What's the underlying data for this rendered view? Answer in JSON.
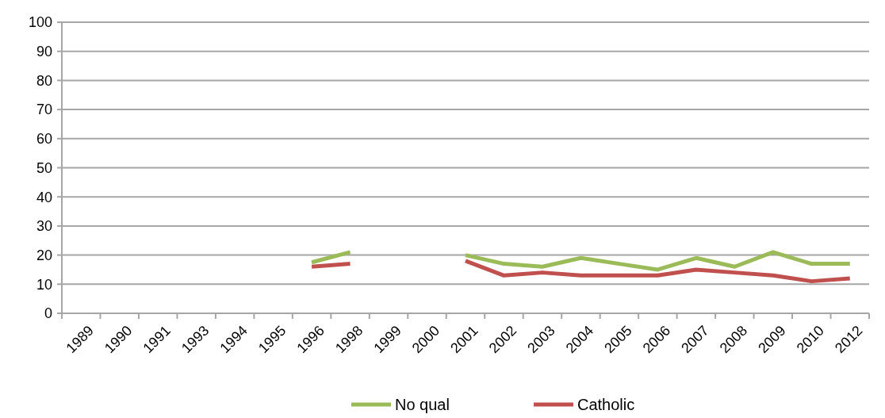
{
  "chart_data": {
    "type": "line",
    "categories": [
      "1989",
      "1990",
      "1991",
      "1993",
      "1994",
      "1995",
      "1996",
      "1998",
      "1999",
      "2000",
      "2001",
      "2002",
      "2003",
      "2004",
      "2005",
      "2006",
      "2007",
      "2008",
      "2009",
      "2010",
      "2012"
    ],
    "series": [
      {
        "name": "No qual",
        "color": "#9bbb59",
        "values": [
          null,
          null,
          null,
          null,
          null,
          null,
          17.5,
          21,
          null,
          null,
          20,
          17,
          16,
          19,
          17,
          15,
          19,
          16,
          21,
          17,
          17
        ]
      },
      {
        "name": "Catholic",
        "color": "#c0504d",
        "values": [
          null,
          null,
          null,
          null,
          null,
          null,
          16,
          17,
          null,
          null,
          18,
          13,
          14,
          13,
          13,
          13,
          15,
          14,
          13,
          11,
          12
        ]
      }
    ],
    "ylim": [
      0,
      100
    ],
    "yticks": [
      0,
      10,
      20,
      30,
      40,
      50,
      60,
      70,
      80,
      90,
      100
    ],
    "grid": "y",
    "legend": "bottom",
    "marker": "none",
    "line_style": "solid"
  }
}
